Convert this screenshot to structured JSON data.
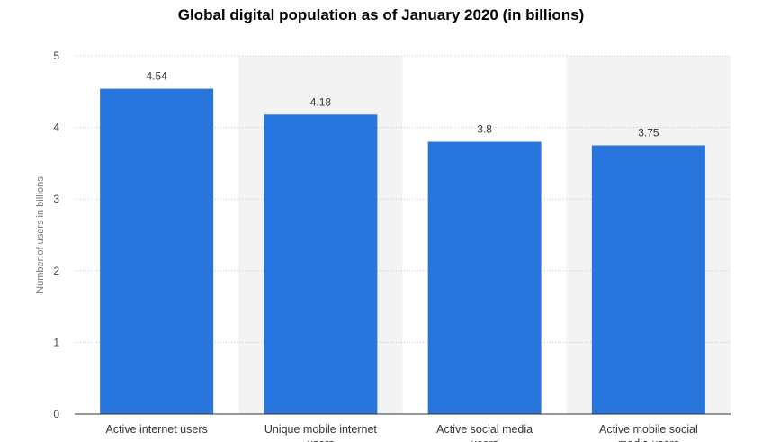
{
  "chart_data": {
    "type": "bar",
    "title": "Global digital population as of January 2020 (in billions)",
    "xlabel": "",
    "ylabel": "Number of users in billions",
    "categories": [
      "Active internet users",
      "Unique mobile internet users",
      "Active social media users",
      "Active mobile social media users"
    ],
    "values": [
      4.54,
      4.18,
      3.8,
      3.75
    ],
    "value_labels": [
      "4.54",
      "4.18",
      "3.8",
      "3.75"
    ],
    "ylim": [
      0,
      5
    ],
    "yticks": [
      0,
      1,
      2,
      3,
      4,
      5
    ],
    "ytick_labels": [
      "0",
      "1",
      "2",
      "3",
      "4",
      "5"
    ],
    "grid": true,
    "legend": "none",
    "colors": {
      "bar": "#2876dd",
      "band": "#f3f3f3",
      "grid": "#c8c8c8",
      "axis": "#333333",
      "tick_text": "#444444",
      "label_text": "#333333",
      "ylabel_text": "#777777"
    }
  }
}
